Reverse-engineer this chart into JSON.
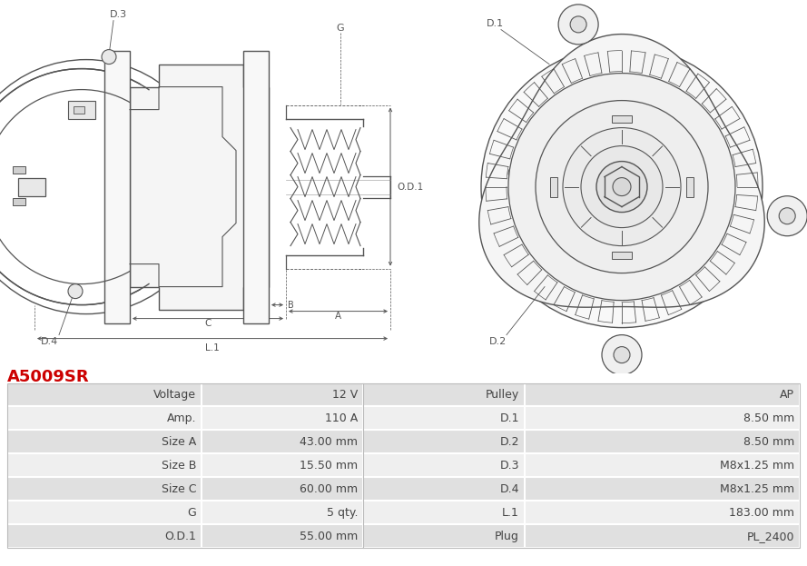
{
  "title": "A5009SR",
  "title_color": "#cc0000",
  "bg_color": "#ffffff",
  "line_color": "#555555",
  "dim_color": "#555555",
  "table_row_bg1": "#e0e0e0",
  "table_row_bg2": "#efefef",
  "rows": [
    [
      "Voltage",
      "12 V",
      "Pulley",
      "AP"
    ],
    [
      "Amp.",
      "110 A",
      "D.1",
      "8.50 mm"
    ],
    [
      "Size A",
      "43.00 mm",
      "D.2",
      "8.50 mm"
    ],
    [
      "Size B",
      "15.50 mm",
      "D.3",
      "M8x1.25 mm"
    ],
    [
      "Size C",
      "60.00 mm",
      "D.4",
      "M8x1.25 mm"
    ],
    [
      "G",
      "5 qty.",
      "L.1",
      "183.00 mm"
    ],
    [
      "O.D.1",
      "55.00 mm",
      "Plug",
      "PL_2400"
    ]
  ],
  "font_size": 9,
  "title_font_size": 13
}
